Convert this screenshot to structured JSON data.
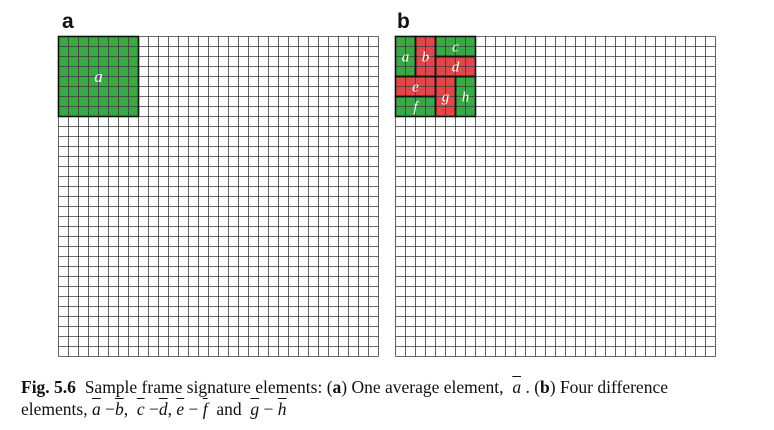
{
  "panels": {
    "a": {
      "label": "a",
      "regions": [
        {
          "name": "a",
          "text": "a",
          "color": "#3aa845",
          "row": 0,
          "col": 0,
          "rows": 8,
          "cols": 8
        }
      ]
    },
    "b": {
      "label": "b",
      "regions": [
        {
          "name": "a",
          "text": "a",
          "color": "#3aa845",
          "row": 0,
          "col": 0,
          "rows": 4,
          "cols": 2
        },
        {
          "name": "b",
          "text": "b",
          "color": "#e0464a",
          "row": 0,
          "col": 2,
          "rows": 4,
          "cols": 2
        },
        {
          "name": "c",
          "text": "c",
          "color": "#3aa845",
          "row": 0,
          "col": 4,
          "rows": 2,
          "cols": 4
        },
        {
          "name": "d",
          "text": "d",
          "color": "#e0464a",
          "row": 2,
          "col": 4,
          "rows": 2,
          "cols": 4
        },
        {
          "name": "e",
          "text": "e",
          "color": "#e0464a",
          "row": 4,
          "col": 0,
          "rows": 2,
          "cols": 4
        },
        {
          "name": "f",
          "text": "f",
          "color": "#3aa845",
          "row": 6,
          "col": 0,
          "rows": 2,
          "cols": 4
        },
        {
          "name": "g",
          "text": "g",
          "color": "#e0464a",
          "row": 4,
          "col": 4,
          "rows": 4,
          "cols": 2
        },
        {
          "name": "h",
          "text": "h",
          "color": "#3aa845",
          "row": 4,
          "col": 6,
          "rows": 4,
          "cols": 2
        }
      ]
    }
  },
  "caption": {
    "fig_label": "Fig. 5.6",
    "text_1": "Sample frame signature elements: (",
    "panel_a": "a",
    "text_2": ") One average element,",
    "sym_a": "a",
    "text_3": ". (",
    "panel_b": "b",
    "text_4": ") Four difference",
    "text_5": "elements,",
    "sym_a2": "a",
    "sym_b": "b",
    "sym_c": "c",
    "sym_d": "d",
    "sym_e": "e",
    "sym_f": "f",
    "text_and": "and",
    "sym_g": "g",
    "sym_h": "h",
    "minus": "−",
    "comma": ","
  },
  "colors": {
    "green": "#3aa845",
    "red": "#e0464a",
    "grid_line": "#3a3a3a"
  }
}
